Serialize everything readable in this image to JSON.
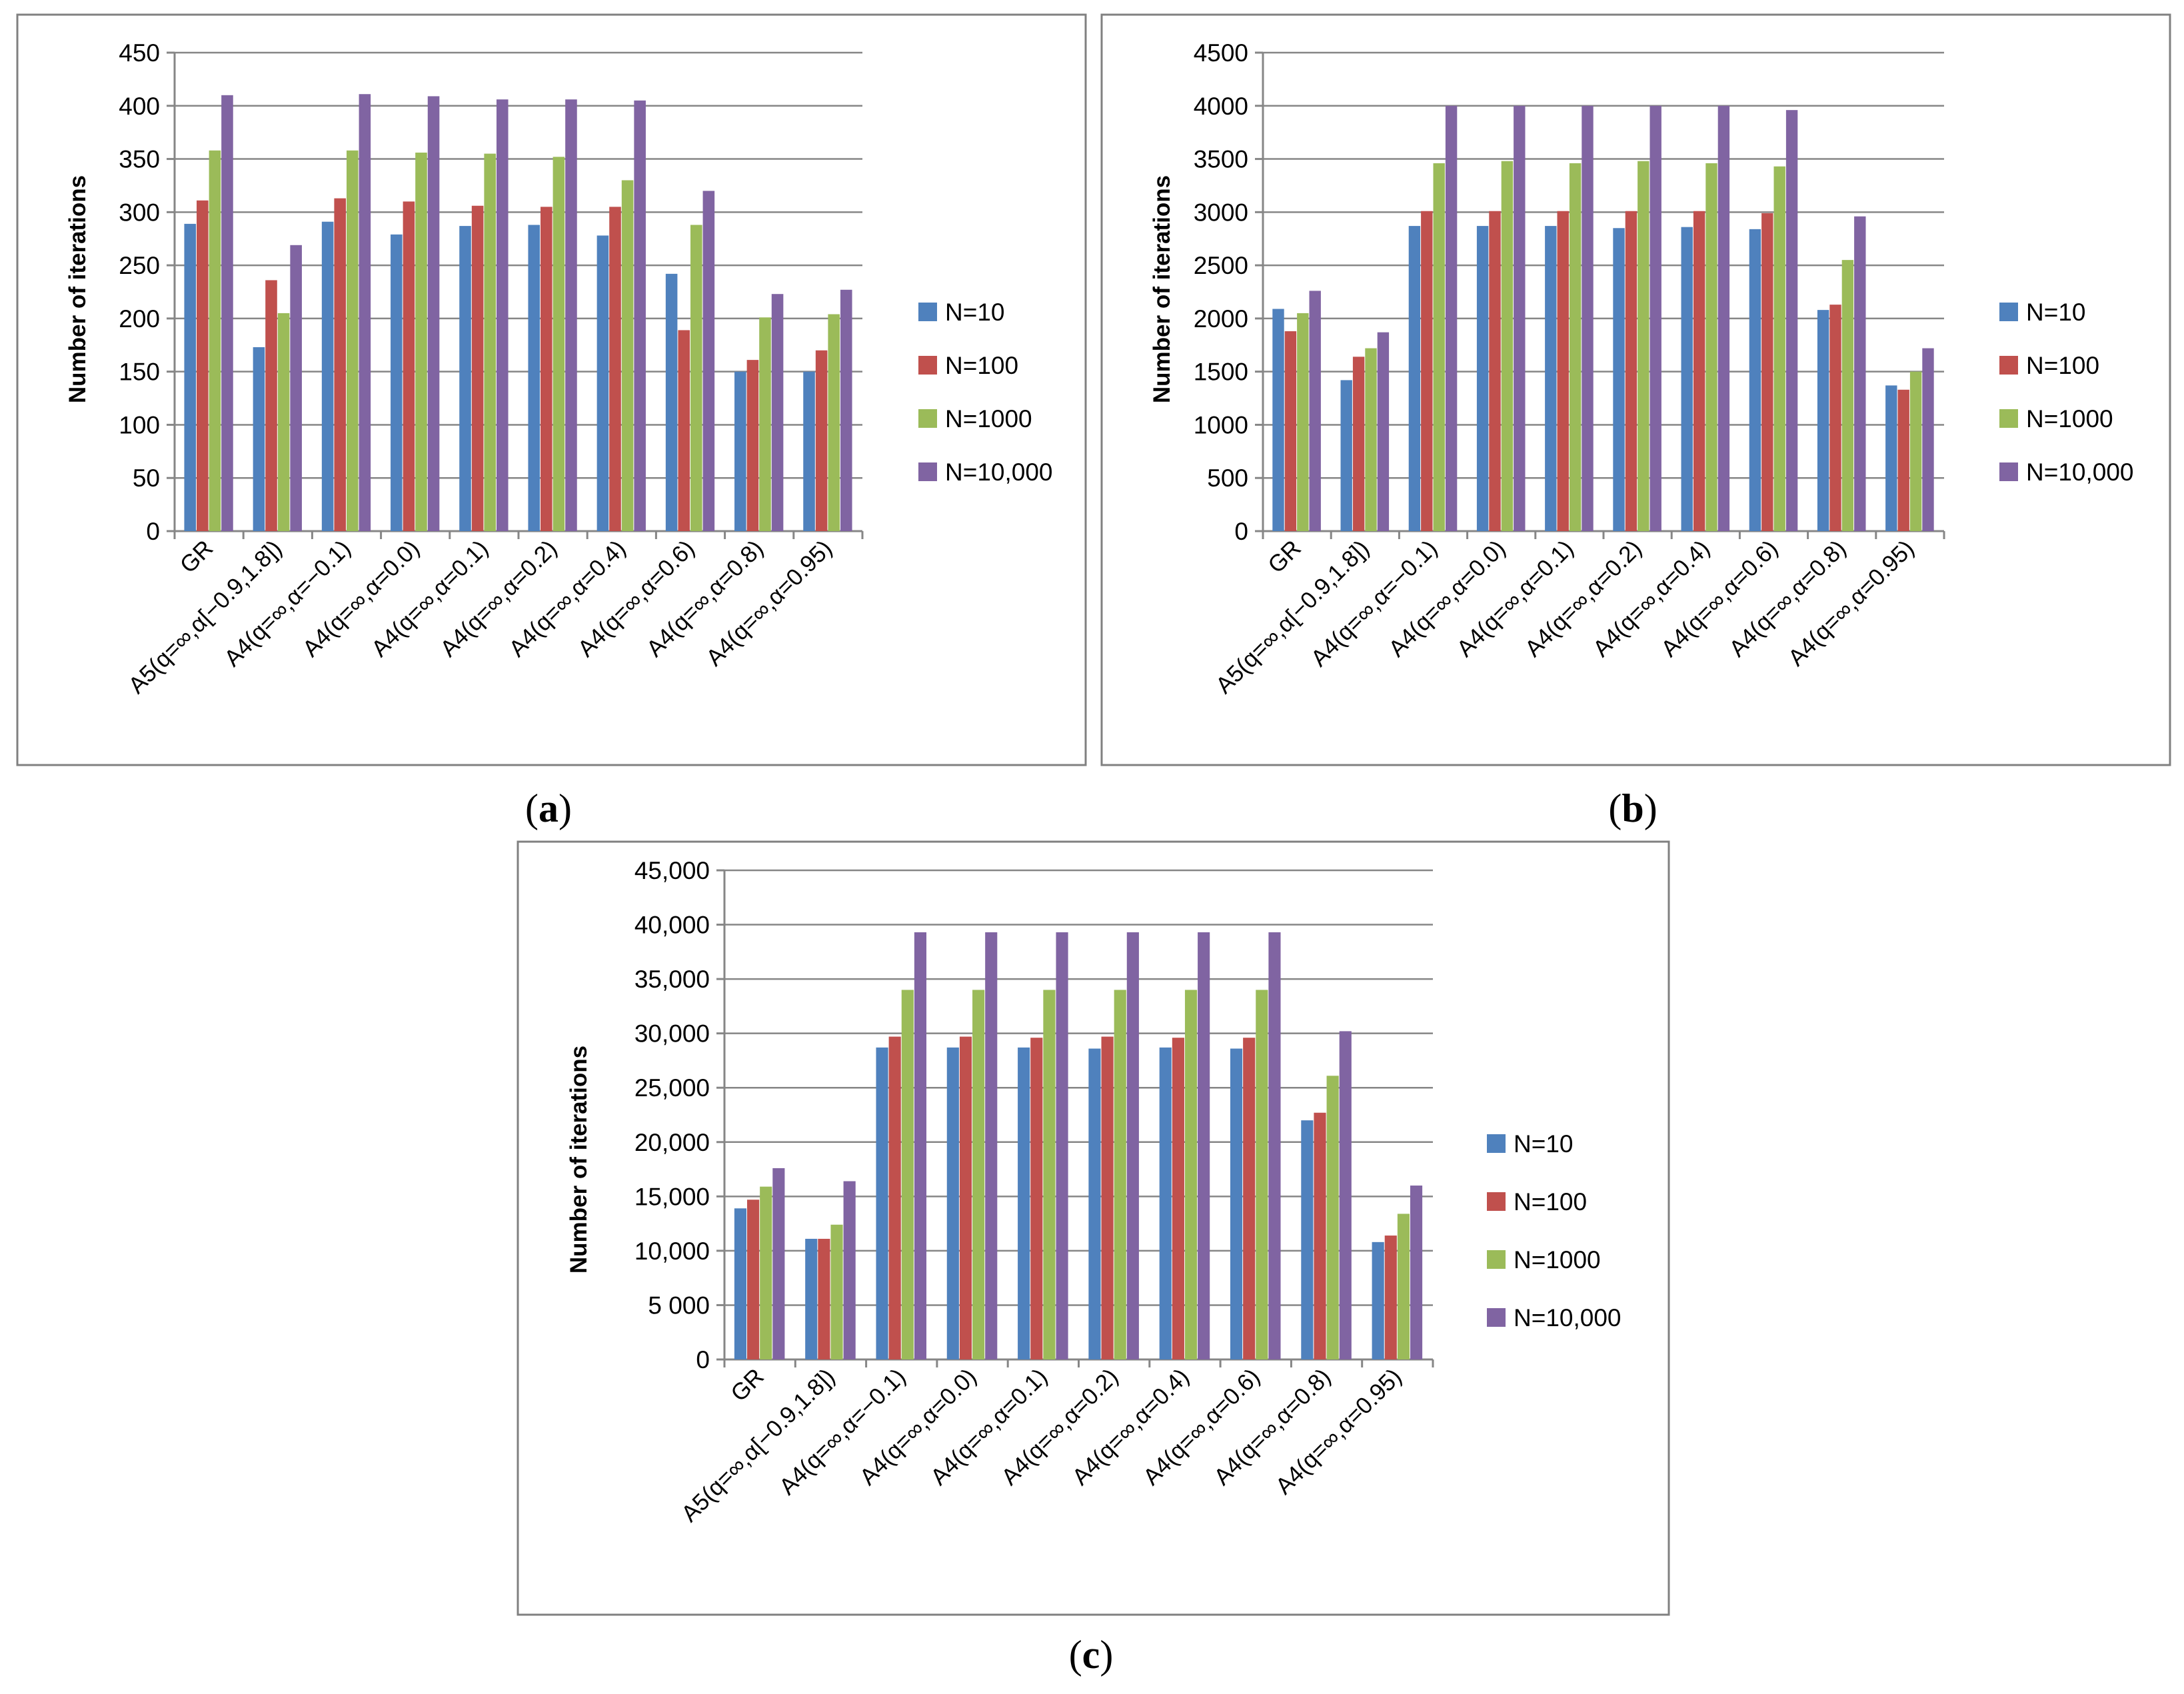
{
  "chart_data": [
    {
      "id": "a",
      "type": "bar",
      "panel_label": "a",
      "ylabel": "Number of iterations",
      "ylim": [
        0,
        450
      ],
      "yticks": [
        0,
        50,
        100,
        150,
        200,
        250,
        300,
        350,
        400,
        450
      ],
      "ytick_labels": [
        "0",
        "50",
        "100",
        "150",
        "200",
        "250",
        "300",
        "350",
        "400",
        "450"
      ],
      "categories": [
        "GR",
        "A5(q=∞,α[−0.9,1.8])",
        "A4(q=∞,α=−0.1)",
        "A4(q=∞,α=0.0)",
        "A4(q=∞,α=0.1)",
        "A4(q=∞,α=0.2)",
        "A4(q=∞,α=0.4)",
        "A4(q=∞,α=0.6)",
        "A4(q=∞,α=0.8)",
        "A4(q=∞,α=0.95)"
      ],
      "series": [
        {
          "name": "N=10",
          "color": "#4f81bd",
          "values": [
            289,
            173,
            291,
            279,
            287,
            288,
            278,
            242,
            150,
            150
          ]
        },
        {
          "name": "N=100",
          "color": "#c0504d",
          "values": [
            311,
            236,
            313,
            310,
            306,
            305,
            305,
            189,
            161,
            170
          ]
        },
        {
          "name": "N=1000",
          "color": "#9bbb59",
          "values": [
            358,
            205,
            358,
            356,
            355,
            352,
            330,
            288,
            201,
            204
          ]
        },
        {
          "name": "N=10,000",
          "color": "#8064a2",
          "values": [
            410,
            269,
            411,
            409,
            406,
            406,
            405,
            320,
            223,
            227
          ]
        }
      ],
      "legend_position": "right"
    },
    {
      "id": "b",
      "type": "bar",
      "panel_label": "b",
      "ylabel": "Number of iterations",
      "ylim": [
        0,
        4500
      ],
      "yticks": [
        0,
        500,
        1000,
        1500,
        2000,
        2500,
        3000,
        3500,
        4000,
        4500
      ],
      "ytick_labels": [
        "0",
        "500",
        "1000",
        "1500",
        "2000",
        "2500",
        "3000",
        "3500",
        "4000",
        "4500"
      ],
      "categories": [
        "GR",
        "A5(q=∞,α[−0.9,1.8])",
        "A4(q=∞,α=−0.1)",
        "A4(q=∞,α=0.0)",
        "A4(q=∞,α=0.1)",
        "A4(q=∞,α=0.2)",
        "A4(q=∞,α=0.4)",
        "A4(q=∞,α=0.6)",
        "A4(q=∞,α=0.8)",
        "A4(q=∞,α=0.95)"
      ],
      "series": [
        {
          "name": "N=10",
          "color": "#4f81bd",
          "values": [
            2090,
            1420,
            2870,
            2870,
            2870,
            2850,
            2860,
            2840,
            2080,
            1370
          ]
        },
        {
          "name": "N=100",
          "color": "#c0504d",
          "values": [
            1880,
            1640,
            3010,
            3010,
            3010,
            3010,
            3010,
            2990,
            2130,
            1330
          ]
        },
        {
          "name": "N=1000",
          "color": "#9bbb59",
          "values": [
            2050,
            1720,
            3460,
            3480,
            3460,
            3480,
            3460,
            3430,
            2550,
            1500
          ]
        },
        {
          "name": "N=10,000",
          "color": "#8064a2",
          "values": [
            2260,
            1870,
            4000,
            4000,
            4000,
            4000,
            4000,
            3960,
            2960,
            1720
          ]
        }
      ],
      "legend_position": "right"
    },
    {
      "id": "c",
      "type": "bar",
      "panel_label": "c",
      "ylabel": "Number of iterations",
      "ylim": [
        0,
        45000
      ],
      "yticks": [
        0,
        5000,
        10000,
        15000,
        20000,
        25000,
        30000,
        35000,
        40000,
        45000
      ],
      "ytick_labels": [
        "0",
        "5 000",
        "10,000",
        "15,000",
        "20,000",
        "25,000",
        "30,000",
        "35,000",
        "40,000",
        "45,000"
      ],
      "categories": [
        "GR",
        "A5(q=∞,α[−0.9,1.8])",
        "A4(q=∞,α=−0.1)",
        "A4(q=∞,α=0.0)",
        "A4(q=∞,α=0.1)",
        "A4(q=∞,α=0.2)",
        "A4(q=∞,α=0.4)",
        "A4(q=∞,α=0.6)",
        "A4(q=∞,α=0.8)",
        "A4(q=∞,α=0.95)"
      ],
      "series": [
        {
          "name": "N=10",
          "color": "#4f81bd",
          "values": [
            13900,
            11100,
            28700,
            28700,
            28700,
            28600,
            28700,
            28600,
            22000,
            10800
          ]
        },
        {
          "name": "N=100",
          "color": "#c0504d",
          "values": [
            14700,
            11100,
            29700,
            29700,
            29600,
            29700,
            29600,
            29600,
            22700,
            11400
          ]
        },
        {
          "name": "N=1000",
          "color": "#9bbb59",
          "values": [
            15900,
            12400,
            34000,
            34000,
            34000,
            34000,
            34000,
            34000,
            26100,
            13400
          ]
        },
        {
          "name": "N=10,000",
          "color": "#8064a2",
          "values": [
            17600,
            16400,
            39300,
            39300,
            39300,
            39300,
            39300,
            39300,
            30200,
            16000
          ]
        }
      ],
      "legend_position": "right"
    }
  ]
}
